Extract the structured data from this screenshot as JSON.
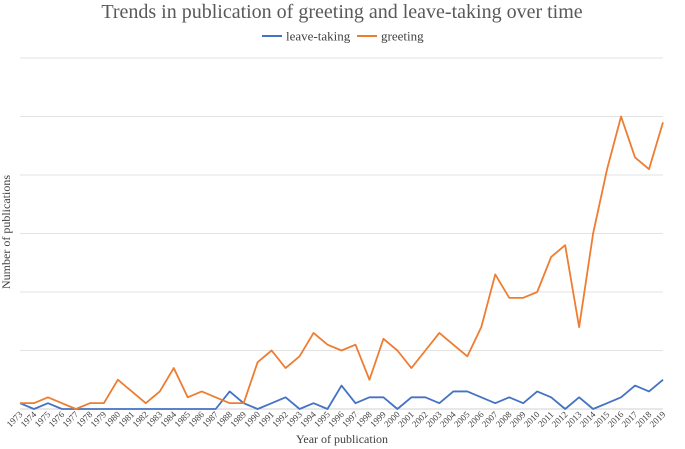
{
  "chart_data": {
    "type": "line",
    "title": "Trends in publication of greeting and leave-taking over time",
    "xlabel": "Year of publication",
    "ylabel": "Number of publications",
    "legend_position": "top-center",
    "grid": true,
    "ylim": [
      0,
      60
    ],
    "categories": [
      "1973",
      "1974",
      "1975",
      "1976",
      "1977",
      "1978",
      "1979",
      "1980",
      "1981",
      "1982",
      "1983",
      "1984",
      "1985",
      "1986",
      "1987",
      "1988",
      "1989",
      "1990",
      "1991",
      "1992",
      "1993",
      "1994",
      "1995",
      "1996",
      "1997",
      "1998",
      "1999",
      "2000",
      "2001",
      "2002",
      "2003",
      "2004",
      "2005",
      "2006",
      "2007",
      "2008",
      "2009",
      "2010",
      "2011",
      "2012",
      "2013",
      "2014",
      "2015",
      "2016",
      "2017",
      "2018",
      "2019"
    ],
    "series": [
      {
        "name": "leave-taking",
        "color": "#4472C4",
        "values": [
          1,
          0,
          1,
          0,
          0,
          0,
          0,
          0,
          0,
          0,
          0,
          0,
          0,
          0,
          0,
          3,
          1,
          0,
          1,
          2,
          0,
          1,
          0,
          4,
          1,
          2,
          2,
          0,
          2,
          2,
          1,
          3,
          3,
          2,
          1,
          2,
          1,
          3,
          2,
          0,
          2,
          0,
          1,
          2,
          4,
          3,
          5
        ]
      },
      {
        "name": "greeting",
        "color": "#ED7D31",
        "values": [
          1,
          1,
          2,
          1,
          0,
          1,
          1,
          5,
          3,
          1,
          3,
          7,
          2,
          3,
          2,
          1,
          1,
          8,
          10,
          7,
          9,
          13,
          11,
          10,
          11,
          5,
          12,
          10,
          7,
          10,
          13,
          11,
          9,
          14,
          23,
          19,
          19,
          20,
          26,
          28,
          14,
          30,
          41,
          50,
          43,
          41,
          49
        ]
      }
    ]
  }
}
